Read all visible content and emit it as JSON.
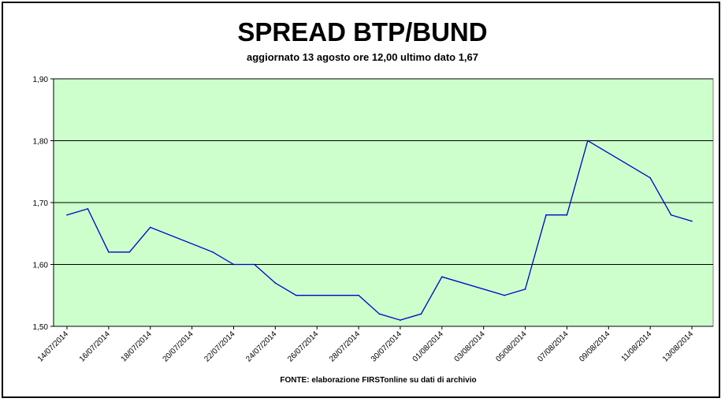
{
  "chart_data": {
    "type": "line",
    "title": "SPREAD BTP/BUND",
    "subtitle": "aggiornato 13 agosto ore 12,00 ultimo dato 1,67",
    "source": "FONTE: elaborazione FIRSTonline su dati di archivio",
    "xlabel": "",
    "ylabel": "",
    "ylim": [
      1.5,
      1.9
    ],
    "yticks": [
      "1,50",
      "1,60",
      "1,70",
      "1,80",
      "1,90"
    ],
    "xticks": [
      "14/07/2014",
      "16/07/2014",
      "18/07/2014",
      "20/07/2014",
      "22/07/2014",
      "24/07/2014",
      "26/07/2014",
      "28/07/2014",
      "30/07/2014",
      "01/08/2014",
      "03/08/2014",
      "05/08/2014",
      "07/08/2014",
      "09/08/2014",
      "11/08/2014",
      "13/08/2014"
    ],
    "grid": true,
    "background": "#ccffcc",
    "line_color": "#0000cc",
    "series": [
      {
        "x": [
          "14/07/2014",
          "15/07/2014",
          "16/07/2014",
          "17/07/2014",
          "18/07/2014",
          "21/07/2014",
          "22/07/2014",
          "23/07/2014",
          "24/07/2014",
          "25/07/2014",
          "28/07/2014",
          "29/07/2014",
          "30/07/2014",
          "31/07/2014",
          "01/08/2014",
          "04/08/2014",
          "05/08/2014",
          "06/08/2014",
          "07/08/2014",
          "08/08/2014",
          "11/08/2014",
          "12/08/2014",
          "13/08/2014"
        ],
        "values": [
          1.68,
          1.69,
          1.62,
          1.62,
          1.66,
          1.62,
          1.6,
          1.6,
          1.57,
          1.55,
          1.55,
          1.52,
          1.51,
          1.52,
          1.58,
          1.55,
          1.56,
          1.68,
          1.68,
          1.8,
          1.74,
          1.68,
          1.67
        ]
      }
    ]
  }
}
